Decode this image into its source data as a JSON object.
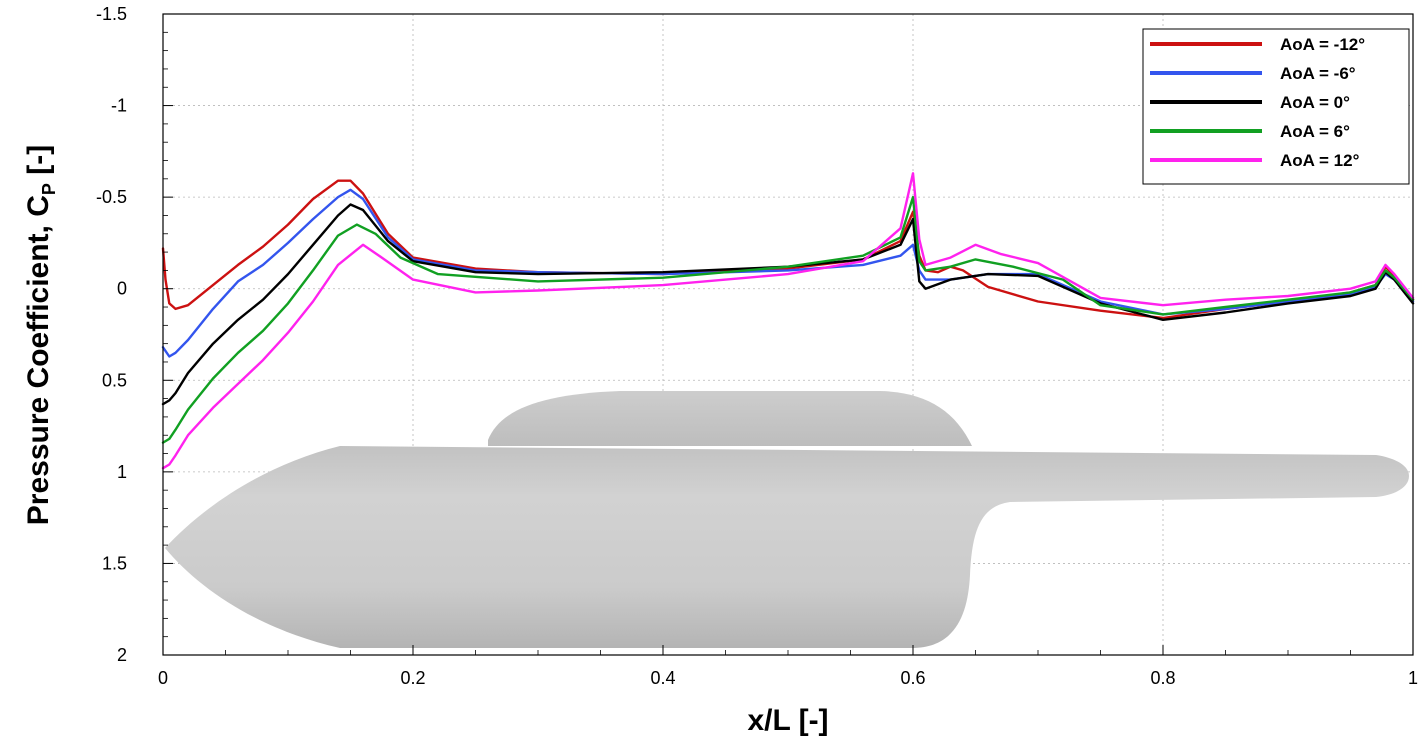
{
  "chart_data": {
    "type": "line",
    "xlabel": "x/L [-]",
    "ylabel": "Pressure Coefficient, C",
    "ylabel_subscript": "P",
    "ylabel_suffix": " [-]",
    "xlim": [
      0,
      1
    ],
    "ylim": [
      2,
      -1.5
    ],
    "y_inverted": true,
    "grid": true,
    "legend_position": "top-right",
    "x_ticks": [
      0,
      0.2,
      0.4,
      0.6,
      0.8,
      1
    ],
    "x_tick_labels": [
      "0",
      "0.2",
      "0.4",
      "0.6",
      "0.8",
      "1"
    ],
    "y_ticks": [
      -1.5,
      -1,
      -0.5,
      0,
      0.5,
      1,
      1.5,
      2
    ],
    "y_tick_labels": [
      "-1.5",
      "-1",
      "-0.5",
      "0",
      "0.5",
      "1",
      "1.5",
      "2"
    ],
    "background_image": "hull-body-rendering",
    "series": [
      {
        "name": "AoA = -12°",
        "color": "#cc1111",
        "points": [
          [
            0,
            -0.22
          ],
          [
            0.002,
            -0.05
          ],
          [
            0.005,
            0.08
          ],
          [
            0.01,
            0.11
          ],
          [
            0.02,
            0.09
          ],
          [
            0.04,
            -0.02
          ],
          [
            0.06,
            -0.13
          ],
          [
            0.08,
            -0.23
          ],
          [
            0.1,
            -0.35
          ],
          [
            0.12,
            -0.49
          ],
          [
            0.14,
            -0.59
          ],
          [
            0.15,
            -0.59
          ],
          [
            0.16,
            -0.52
          ],
          [
            0.18,
            -0.3
          ],
          [
            0.2,
            -0.17
          ],
          [
            0.25,
            -0.11
          ],
          [
            0.3,
            -0.09
          ],
          [
            0.4,
            -0.08
          ],
          [
            0.5,
            -0.11
          ],
          [
            0.56,
            -0.16
          ],
          [
            0.59,
            -0.26
          ],
          [
            0.6,
            -0.42
          ],
          [
            0.605,
            -0.18
          ],
          [
            0.61,
            -0.1
          ],
          [
            0.62,
            -0.09
          ],
          [
            0.63,
            -0.12
          ],
          [
            0.64,
            -0.1
          ],
          [
            0.66,
            -0.01
          ],
          [
            0.7,
            0.07
          ],
          [
            0.75,
            0.12
          ],
          [
            0.8,
            0.16
          ],
          [
            0.85,
            0.11
          ],
          [
            0.9,
            0.07
          ],
          [
            0.95,
            0.02
          ],
          [
            0.97,
            -0.02
          ],
          [
            0.978,
            -0.12
          ],
          [
            0.985,
            -0.07
          ],
          [
            1,
            0.06
          ]
        ]
      },
      {
        "name": "AoA = -6°",
        "color": "#3355ee",
        "points": [
          [
            0,
            0.32
          ],
          [
            0.005,
            0.37
          ],
          [
            0.01,
            0.35
          ],
          [
            0.02,
            0.28
          ],
          [
            0.04,
            0.11
          ],
          [
            0.06,
            -0.04
          ],
          [
            0.08,
            -0.13
          ],
          [
            0.1,
            -0.25
          ],
          [
            0.12,
            -0.38
          ],
          [
            0.14,
            -0.5
          ],
          [
            0.15,
            -0.54
          ],
          [
            0.16,
            -0.49
          ],
          [
            0.18,
            -0.28
          ],
          [
            0.2,
            -0.16
          ],
          [
            0.25,
            -0.1
          ],
          [
            0.3,
            -0.09
          ],
          [
            0.4,
            -0.08
          ],
          [
            0.5,
            -0.1
          ],
          [
            0.56,
            -0.13
          ],
          [
            0.59,
            -0.18
          ],
          [
            0.6,
            -0.24
          ],
          [
            0.605,
            -0.1
          ],
          [
            0.61,
            -0.05
          ],
          [
            0.63,
            -0.05
          ],
          [
            0.66,
            -0.08
          ],
          [
            0.7,
            -0.08
          ],
          [
            0.75,
            0.07
          ],
          [
            0.8,
            0.14
          ],
          [
            0.85,
            0.11
          ],
          [
            0.9,
            0.07
          ],
          [
            0.95,
            0.03
          ],
          [
            0.97,
            -0.01
          ],
          [
            0.978,
            -0.08
          ],
          [
            0.985,
            -0.05
          ],
          [
            1,
            0.07
          ]
        ]
      },
      {
        "name": "AoA = 0°",
        "color": "#000000",
        "points": [
          [
            0,
            0.63
          ],
          [
            0.005,
            0.61
          ],
          [
            0.01,
            0.57
          ],
          [
            0.02,
            0.46
          ],
          [
            0.04,
            0.3
          ],
          [
            0.06,
            0.17
          ],
          [
            0.08,
            0.06
          ],
          [
            0.1,
            -0.08
          ],
          [
            0.12,
            -0.24
          ],
          [
            0.14,
            -0.4
          ],
          [
            0.15,
            -0.46
          ],
          [
            0.16,
            -0.43
          ],
          [
            0.18,
            -0.26
          ],
          [
            0.2,
            -0.15
          ],
          [
            0.25,
            -0.09
          ],
          [
            0.3,
            -0.08
          ],
          [
            0.4,
            -0.09
          ],
          [
            0.5,
            -0.12
          ],
          [
            0.56,
            -0.16
          ],
          [
            0.59,
            -0.24
          ],
          [
            0.6,
            -0.38
          ],
          [
            0.605,
            -0.04
          ],
          [
            0.61,
            0.0
          ],
          [
            0.63,
            -0.05
          ],
          [
            0.66,
            -0.08
          ],
          [
            0.7,
            -0.07
          ],
          [
            0.75,
            0.08
          ],
          [
            0.8,
            0.17
          ],
          [
            0.85,
            0.13
          ],
          [
            0.9,
            0.08
          ],
          [
            0.95,
            0.04
          ],
          [
            0.97,
            0.0
          ],
          [
            0.978,
            -0.09
          ],
          [
            0.985,
            -0.05
          ],
          [
            1,
            0.08
          ]
        ]
      },
      {
        "name": "AoA = 6°",
        "color": "#11a022",
        "points": [
          [
            0,
            0.84
          ],
          [
            0.005,
            0.82
          ],
          [
            0.01,
            0.77
          ],
          [
            0.02,
            0.66
          ],
          [
            0.04,
            0.49
          ],
          [
            0.06,
            0.35
          ],
          [
            0.08,
            0.23
          ],
          [
            0.1,
            0.08
          ],
          [
            0.12,
            -0.1
          ],
          [
            0.14,
            -0.29
          ],
          [
            0.155,
            -0.35
          ],
          [
            0.17,
            -0.3
          ],
          [
            0.19,
            -0.17
          ],
          [
            0.22,
            -0.08
          ],
          [
            0.3,
            -0.04
          ],
          [
            0.4,
            -0.06
          ],
          [
            0.5,
            -0.12
          ],
          [
            0.56,
            -0.18
          ],
          [
            0.59,
            -0.28
          ],
          [
            0.6,
            -0.5
          ],
          [
            0.605,
            -0.15
          ],
          [
            0.61,
            -0.1
          ],
          [
            0.63,
            -0.12
          ],
          [
            0.65,
            -0.16
          ],
          [
            0.68,
            -0.12
          ],
          [
            0.72,
            -0.05
          ],
          [
            0.75,
            0.09
          ],
          [
            0.8,
            0.14
          ],
          [
            0.85,
            0.1
          ],
          [
            0.9,
            0.06
          ],
          [
            0.95,
            0.02
          ],
          [
            0.97,
            -0.02
          ],
          [
            0.978,
            -0.1
          ],
          [
            0.985,
            -0.06
          ],
          [
            1,
            0.06
          ]
        ]
      },
      {
        "name": "AoA = 12°",
        "color": "#ff22ee",
        "points": [
          [
            0,
            0.98
          ],
          [
            0.005,
            0.96
          ],
          [
            0.01,
            0.91
          ],
          [
            0.02,
            0.8
          ],
          [
            0.04,
            0.65
          ],
          [
            0.06,
            0.52
          ],
          [
            0.08,
            0.39
          ],
          [
            0.1,
            0.24
          ],
          [
            0.12,
            0.07
          ],
          [
            0.14,
            -0.13
          ],
          [
            0.16,
            -0.24
          ],
          [
            0.175,
            -0.17
          ],
          [
            0.2,
            -0.05
          ],
          [
            0.25,
            0.02
          ],
          [
            0.3,
            0.01
          ],
          [
            0.4,
            -0.02
          ],
          [
            0.5,
            -0.08
          ],
          [
            0.56,
            -0.15
          ],
          [
            0.59,
            -0.33
          ],
          [
            0.6,
            -0.63
          ],
          [
            0.605,
            -0.27
          ],
          [
            0.61,
            -0.13
          ],
          [
            0.63,
            -0.17
          ],
          [
            0.65,
            -0.24
          ],
          [
            0.67,
            -0.19
          ],
          [
            0.7,
            -0.14
          ],
          [
            0.75,
            0.05
          ],
          [
            0.8,
            0.09
          ],
          [
            0.85,
            0.06
          ],
          [
            0.9,
            0.04
          ],
          [
            0.95,
            0.0
          ],
          [
            0.97,
            -0.04
          ],
          [
            0.978,
            -0.13
          ],
          [
            0.985,
            -0.08
          ],
          [
            1,
            0.05
          ]
        ]
      }
    ]
  }
}
